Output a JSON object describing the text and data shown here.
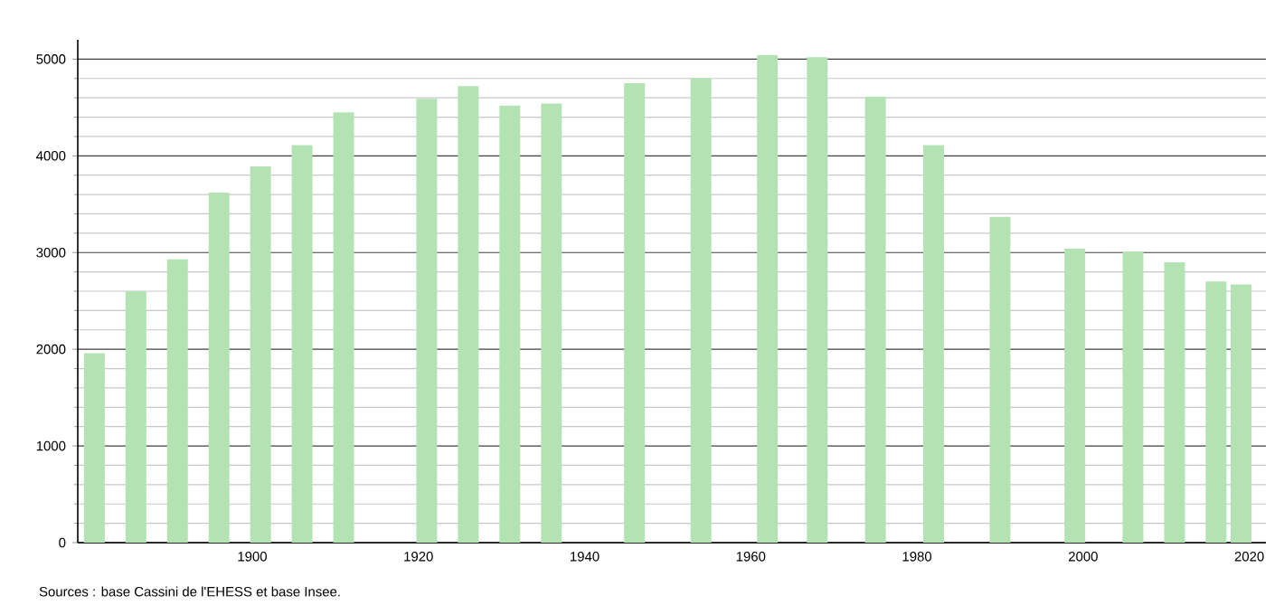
{
  "chart_data": {
    "type": "bar",
    "x": [
      1881,
      1886,
      1891,
      1896,
      1901,
      1906,
      1911,
      1921,
      1926,
      1931,
      1936,
      1946,
      1954,
      1962,
      1968,
      1975,
      1982,
      1990,
      1999,
      2006,
      2011,
      2016,
      2019
    ],
    "values": [
      1960,
      2600,
      2930,
      3620,
      3890,
      4110,
      4450,
      4590,
      4720,
      4520,
      4540,
      4750,
      4800,
      5040,
      5020,
      4610,
      4110,
      3370,
      3040,
      3010,
      2900,
      2700,
      2670
    ],
    "color": "#b3e3b3",
    "xlim": [
      1879,
      2022
    ],
    "xticks": [
      1900,
      1920,
      1940,
      1960,
      1980,
      2000,
      2020
    ],
    "ylim": [
      0,
      5200
    ],
    "yticks": [
      0,
      1000,
      2000,
      3000,
      4000,
      5000
    ],
    "grid": "y",
    "annotations": [
      "Sources : base Cassini de l'EHESS et base Insee."
    ]
  }
}
